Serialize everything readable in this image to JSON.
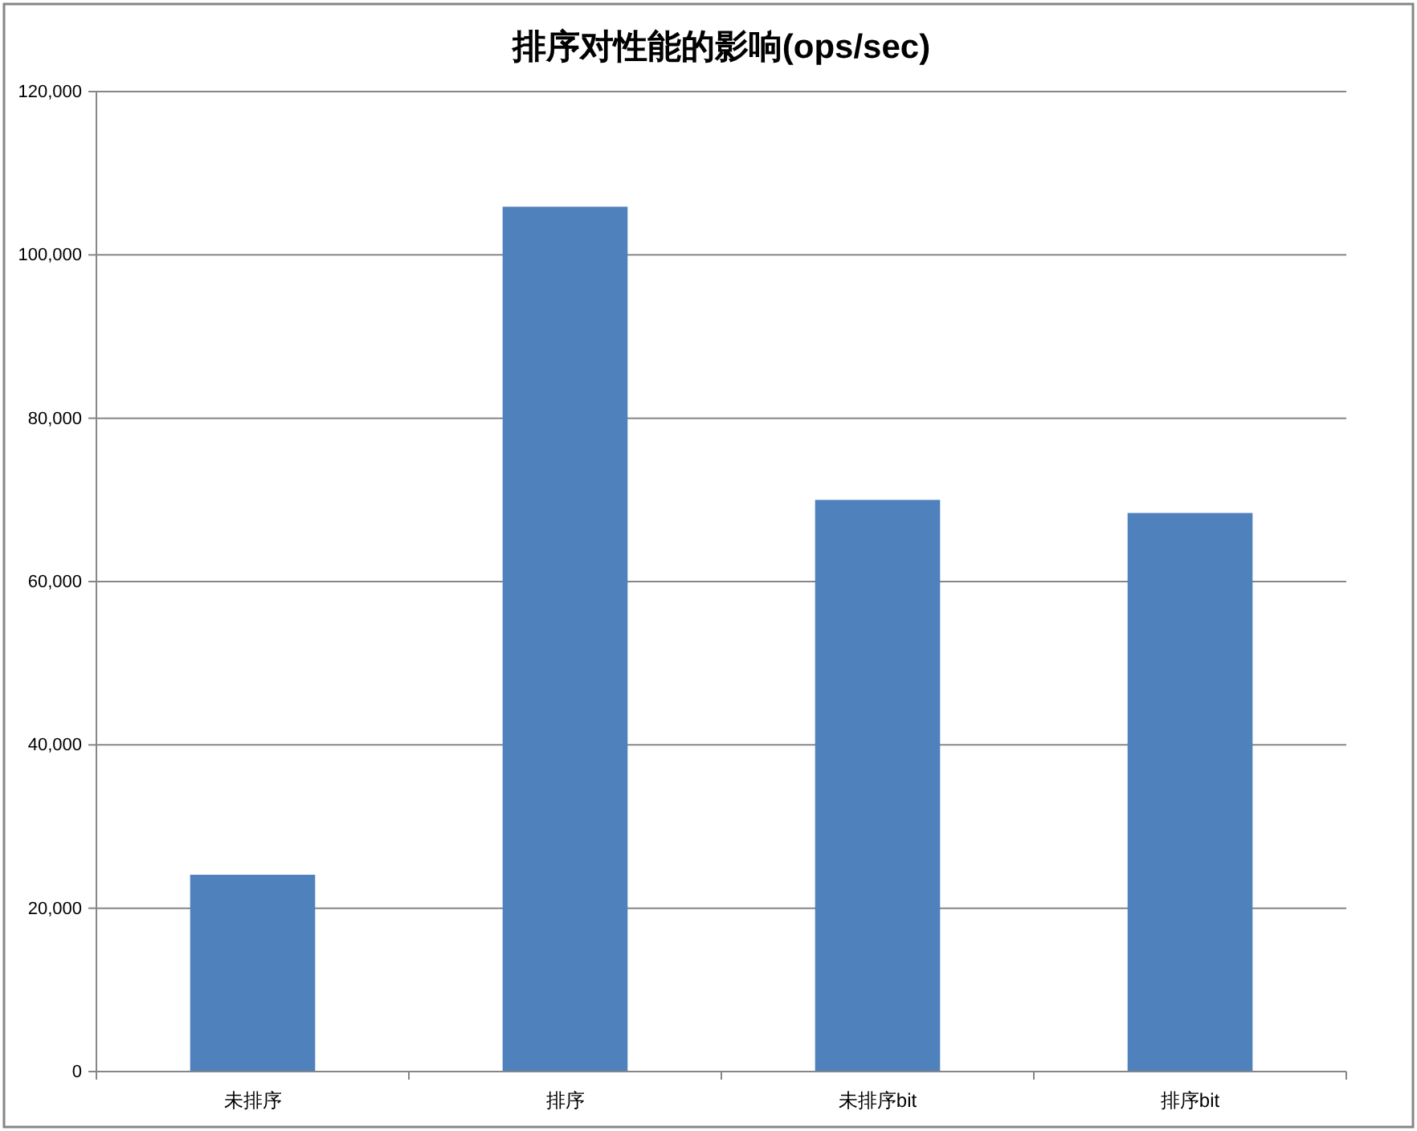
{
  "chart_data": {
    "type": "bar",
    "title": "排序对性能的影响(ops/sec)",
    "categories": [
      "未排序",
      "排序",
      "未排序bit",
      "排序bit"
    ],
    "values": [
      24100,
      105900,
      70000,
      68400
    ],
    "color": "#4f81bd",
    "ylim": [
      0,
      120000
    ],
    "yticks": [
      0,
      {
        "value": 20000,
        "label": "20,000"
      },
      {
        "value": 40000,
        "label": "40,000"
      },
      {
        "value": 60000,
        "label": "60,000"
      },
      {
        "value": 80000,
        "label": "80,000"
      },
      {
        "value": 100000,
        "label": "100,000"
      },
      {
        "value": 120000,
        "label": "120,000"
      }
    ],
    "grid": "y"
  }
}
